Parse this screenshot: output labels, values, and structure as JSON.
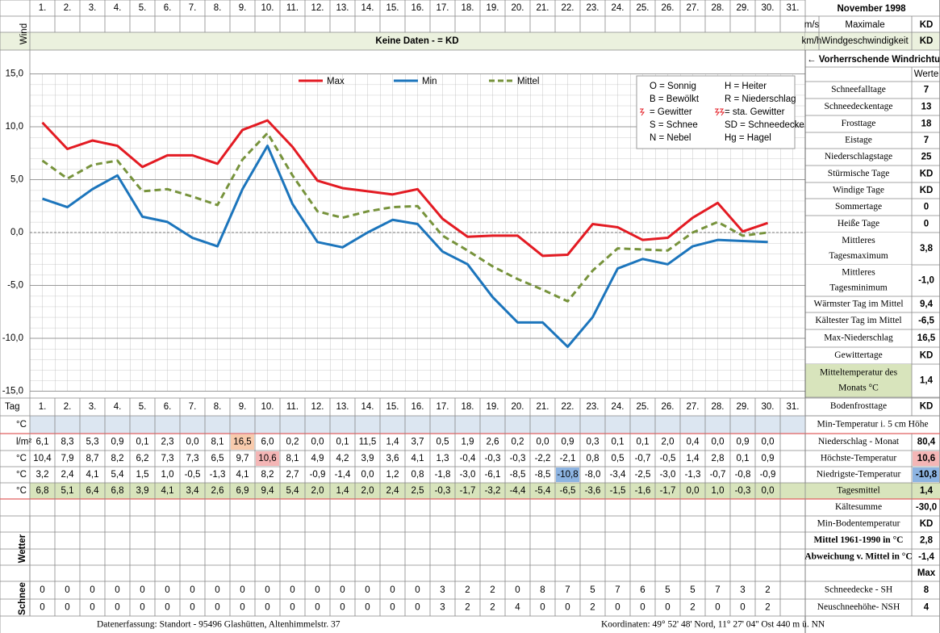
{
  "header": {
    "days": [
      "1.",
      "2.",
      "3.",
      "4.",
      "5.",
      "6.",
      "7.",
      "8.",
      "9.",
      "10.",
      "11.",
      "12.",
      "13.",
      "14.",
      "15.",
      "16.",
      "17.",
      "18.",
      "19.",
      "20.",
      "21.",
      "22.",
      "23.",
      "24.",
      "25.",
      "26.",
      "27.",
      "28.",
      "29.",
      "30.",
      "31."
    ],
    "title": "November 1998"
  },
  "wind": {
    "label": "Wind",
    "message": "Keine Daten -  = KD",
    "units": [
      "m/s",
      "km/h"
    ],
    "caption": [
      "Maximale",
      "Windgeschwindigkeit"
    ],
    "values": [
      "KD",
      "KD"
    ],
    "direction": "← Vorherrschende Windrichtung"
  },
  "chart_data": {
    "type": "line",
    "ylim": [
      -15,
      15
    ],
    "yticks": [
      {
        "value": 15,
        "label": "15,0"
      },
      {
        "value": 10,
        "label": "10,0"
      },
      {
        "value": 5,
        "label": "5,0"
      },
      {
        "value": 0,
        "label": "0,0"
      },
      {
        "value": -5,
        "label": "-5,0"
      },
      {
        "value": -10,
        "label": "-10,0"
      },
      {
        "value": -15,
        "label": "-15,0"
      }
    ],
    "grid": true,
    "series": [
      {
        "name": "Max",
        "color": "#e31b23",
        "dashed": false,
        "values": [
          10.4,
          7.9,
          8.7,
          8.2,
          6.2,
          7.3,
          7.3,
          6.5,
          9.7,
          10.6,
          8.1,
          4.9,
          4.2,
          3.9,
          3.6,
          4.1,
          1.3,
          -0.4,
          -0.3,
          -0.3,
          -2.2,
          -2.1,
          0.8,
          0.5,
          -0.7,
          -0.5,
          1.4,
          2.8,
          0.1,
          0.9
        ],
        "value_labels": [
          "10,4",
          "7,9",
          "8,7",
          "8,2",
          "6,2",
          "7,3",
          "7,3",
          "6,5",
          "9,7",
          "10,6",
          "8,1",
          "4,9",
          "4,2",
          "3,9",
          "3,6",
          "4,1",
          "1,3",
          "-0,4",
          "-0,3",
          "-0,3",
          "-2,2",
          "-2,1",
          "0,8",
          "0,5",
          "-0,7",
          "-0,5",
          "1,4",
          "2,8",
          "0,1",
          "0,9"
        ]
      },
      {
        "name": "Min",
        "color": "#1c75bc",
        "dashed": false,
        "values": [
          3.2,
          2.4,
          4.1,
          5.4,
          1.5,
          1.0,
          -0.5,
          -1.3,
          4.1,
          8.2,
          2.7,
          -0.9,
          -1.4,
          0.0,
          1.2,
          0.8,
          -1.8,
          -3.0,
          -6.1,
          -8.5,
          -8.5,
          -10.8,
          -8.0,
          -3.4,
          -2.5,
          -3.0,
          -1.3,
          -0.7,
          -0.8,
          -0.9
        ],
        "value_labels": [
          "3,2",
          "2,4",
          "4,1",
          "5,4",
          "1,5",
          "1,0",
          "-0,5",
          "-1,3",
          "4,1",
          "8,2",
          "2,7",
          "-0,9",
          "-1,4",
          "0,0",
          "1,2",
          "0,8",
          "-1,8",
          "-3,0",
          "-6,1",
          "-8,5",
          "-8,5",
          "-10,8",
          "-8,0",
          "-3,4",
          "-2,5",
          "-3,0",
          "-1,3",
          "-0,7",
          "-0,8",
          "-0,9"
        ]
      },
      {
        "name": "Mittel",
        "color": "#77933c",
        "dashed": true,
        "values": [
          6.8,
          5.1,
          6.4,
          6.8,
          3.9,
          4.1,
          3.4,
          2.6,
          6.9,
          9.4,
          5.4,
          2.0,
          1.4,
          2.0,
          2.4,
          2.5,
          -0.3,
          -1.7,
          -3.2,
          -4.4,
          -5.4,
          -6.5,
          -3.6,
          -1.5,
          -1.6,
          -1.7,
          0.0,
          1.0,
          -0.3,
          0.0
        ],
        "value_labels": [
          "6,8",
          "5,1",
          "6,4",
          "6,8",
          "3,9",
          "4,1",
          "3,4",
          "2,6",
          "6,9",
          "9,4",
          "5,4",
          "2,0",
          "1,4",
          "2,0",
          "2,4",
          "2,5",
          "-0,3",
          "-1,7",
          "-3,2",
          "-4,4",
          "-5,4",
          "-6,5",
          "-3,6",
          "-1,5",
          "-1,6",
          "-1,7",
          "0,0",
          "1,0",
          "-0,3",
          "0,0"
        ]
      }
    ]
  },
  "weather_key": [
    [
      "O = Sonnig",
      "H = Heiter"
    ],
    [
      "B = Bewölkt",
      "R = Niederschlag"
    ],
    [
      "= Gewitter",
      "= sta. Gewitter"
    ],
    [
      "S = Schnee",
      "SD = Schneedecke"
    ],
    [
      "N = Nebel",
      "Hg = Hagel"
    ]
  ],
  "stats": {
    "header": "Werte",
    "rows": [
      {
        "label": [
          "Schneefalltage"
        ],
        "value": "7"
      },
      {
        "label": [
          "Schneedeckentage"
        ],
        "value": "13"
      },
      {
        "label": [
          "Frosttage"
        ],
        "value": "18"
      },
      {
        "label": [
          "Eistage"
        ],
        "value": "7"
      },
      {
        "label": [
          "Niederschlagstage"
        ],
        "value": "25"
      },
      {
        "label": [
          "Stürmische Tage"
        ],
        "value": "KD"
      },
      {
        "label": [
          "Windige Tage"
        ],
        "value": "KD"
      },
      {
        "label": [
          "Sommertage"
        ],
        "value": "0"
      },
      {
        "label": [
          "Heiße Tage"
        ],
        "value": "0"
      },
      {
        "label": [
          "Mittleres",
          "Tagesmaximum"
        ],
        "value": "3,8"
      },
      {
        "label": [
          "Mittleres",
          "Tagesminimum"
        ],
        "value": "-1,0"
      },
      {
        "label": [
          "Wärmster Tag im Mittel"
        ],
        "value": "9,4"
      },
      {
        "label": [
          "Kältester Tag im Mittel"
        ],
        "value": "-6,5"
      },
      {
        "label": [
          "Max-Niederschlag"
        ],
        "value": "16,5"
      },
      {
        "label": [
          "Gewittertage"
        ],
        "value": "KD"
      },
      {
        "label": [
          "Mitteltemperatur des",
          "Monats °C"
        ],
        "value": "1,4"
      },
      {
        "label": [
          "Bodenfrosttage"
        ],
        "value": "KD"
      }
    ]
  },
  "table": {
    "day_label": "Tag",
    "min5": {
      "unit": "°C",
      "label": "Min-Temperatur i. 5 cm Höhe"
    },
    "precip": {
      "unit": "l/m²",
      "cells": [
        "6,1",
        "8,3",
        "5,3",
        "0,9",
        "0,1",
        "2,3",
        "0,0",
        "8,1",
        "16,5",
        "6,0",
        "0,2",
        "0,0",
        "0,1",
        "11,5",
        "1,4",
        "3,7",
        "0,5",
        "1,9",
        "2,6",
        "0,2",
        "0,0",
        "0,9",
        "0,3",
        "0,1",
        "0,1",
        "2,0",
        "0,4",
        "0,0",
        "0,9",
        "0,0"
      ],
      "label": "Niederschlag - Monat",
      "value": "80,4"
    },
    "temps": [
      {
        "unit": "°C",
        "label": "Höchste-Temperatur",
        "value": "10,6"
      },
      {
        "unit": "°C",
        "label": "Niedrigste-Temperatur",
        "value": "-10,8"
      },
      {
        "unit": "°C",
        "label": "Tagesmittel",
        "value": "1,4"
      }
    ],
    "summary": [
      {
        "label": "Kältesumme",
        "value": "-30,0"
      },
      {
        "label": "Min-Bodentemperatur",
        "value": "KD"
      },
      {
        "label": "Mittel 1961-1990 in °C",
        "value": "2,8"
      },
      {
        "label": "Abweichung v. Mittel in °C",
        "value": "-1,4"
      },
      {
        "value": "Max"
      }
    ],
    "weather_label": "Wetter",
    "snow": {
      "label": "Schnee",
      "rows": [
        {
          "cells": [
            0,
            0,
            0,
            0,
            0,
            0,
            0,
            0,
            0,
            0,
            0,
            0,
            0,
            0,
            0,
            0,
            3,
            2,
            2,
            0,
            8,
            7,
            5,
            7,
            6,
            5,
            5,
            7,
            3,
            2
          ],
          "label": "Schneedecke -  SH",
          "value": "8"
        },
        {
          "cells": [
            0,
            0,
            0,
            0,
            0,
            0,
            0,
            0,
            0,
            0,
            0,
            0,
            0,
            0,
            0,
            0,
            3,
            2,
            2,
            4,
            0,
            0,
            2,
            0,
            0,
            0,
            2,
            0,
            0,
            2
          ],
          "label": "Neuschneehöhe- NSH",
          "value": "4"
        }
      ]
    }
  },
  "footer": {
    "left": "Datenerfassung:  Standort -  95496  Glashütten, Altenhimmelstr. 37",
    "right": "Koordinaten:  49° 52' 48' Nord,  11° 27' 04'' Ost   440 m ü. NN"
  }
}
